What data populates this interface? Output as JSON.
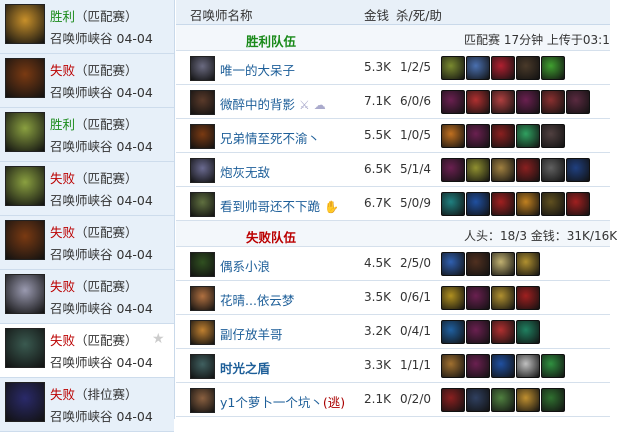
{
  "sidebar": {
    "matches": [
      {
        "result": "胜利",
        "result_type": "win",
        "mode": "（匹配赛）",
        "map": "召唤师峡谷",
        "date": "04-04",
        "avatar_color": "#c8902a"
      },
      {
        "result": "失败",
        "result_type": "lose",
        "mode": "（匹配赛）",
        "map": "召唤师峡谷",
        "date": "04-04",
        "avatar_color": "#7a3a12"
      },
      {
        "result": "胜利",
        "result_type": "win",
        "mode": "（匹配赛）",
        "map": "召唤师峡谷",
        "date": "04-04",
        "avatar_color": "#8aa040"
      },
      {
        "result": "失败",
        "result_type": "lose",
        "mode": "（匹配赛）",
        "map": "召唤师峡谷",
        "date": "04-04",
        "avatar_color": "#8aa040"
      },
      {
        "result": "失败",
        "result_type": "lose",
        "mode": "（匹配赛）",
        "map": "召唤师峡谷",
        "date": "04-04",
        "avatar_color": "#7a3a12"
      },
      {
        "result": "失败",
        "result_type": "lose",
        "mode": "（匹配赛）",
        "map": "召唤师峡谷",
        "date": "04-04",
        "avatar_color": "#9a9ab0"
      },
      {
        "result": "失败",
        "result_type": "lose",
        "mode": "（匹配赛）",
        "map": "召唤师峡谷",
        "date": "04-04",
        "avatar_color": "#3a5a50",
        "selected": true,
        "icon": "star-icon"
      },
      {
        "result": "失败",
        "result_type": "lose",
        "mode": "（排位赛）",
        "map": "召唤师峡谷",
        "date": "04-04",
        "avatar_color": "#2a2a6a"
      }
    ]
  },
  "header": {
    "name": "召唤师名称",
    "gold": "金钱",
    "kda": "杀/死/助"
  },
  "teams": [
    {
      "name": "胜利队伍",
      "color": "#1a8a1a",
      "info": "匹配赛 17分钟 上传于03:1",
      "players": [
        {
          "name": "唯一的大呆子",
          "gold": "5.3K",
          "kda": "1/2/5",
          "avatar_color": "#6a6a80",
          "items": [
            "#7a8a30",
            "#4a70b0",
            "#b02030",
            "#4a3a2a",
            "#40a030"
          ]
        },
        {
          "name": "微醉中的背影",
          "gold": "7.1K",
          "kda": "6/0/6",
          "avatar_color": "#5a3a2a",
          "icons": [
            "sword-icon",
            "cloud-icon"
          ],
          "items": [
            "#6a2050",
            "#b03030",
            "#b04040",
            "#6a2050",
            "#8a3030",
            "#5a2a40"
          ]
        },
        {
          "name": "兄弟情至死不渝丶",
          "gold": "5.5K",
          "kda": "1/0/5",
          "avatar_color": "#7a3a12",
          "items": [
            "#c07020",
            "#6a2050",
            "#8a2020",
            "#30a060",
            "#504040"
          ]
        },
        {
          "name": "炮灰无敌",
          "gold": "6.5K",
          "kda": "5/1/4",
          "avatar_color": "#6a6a90",
          "items": [
            "#6a2050",
            "#909030",
            "#a08040",
            "#8a2020",
            "#606060",
            "#204080"
          ]
        },
        {
          "name": "看到帅哥还不下跪",
          "gold": "6.7K",
          "kda": "5/0/9",
          "avatar_color": "#607040",
          "icons": [
            "hand-icon"
          ],
          "items": [
            "#208080",
            "#2050a0",
            "#a02020",
            "#c08020",
            "#605020",
            "#a02020"
          ]
        }
      ]
    },
    {
      "name": "失败队伍",
      "color": "#b00",
      "info": "人头：18/3 金钱：31K/16K",
      "players": [
        {
          "name": "偶系小浪",
          "gold": "4.5K",
          "kda": "2/5/0",
          "avatar_color": "#305020",
          "items": [
            "#3060b0",
            "#503020",
            "#c0b070",
            "#b09030"
          ]
        },
        {
          "name": "花晴...依云梦",
          "gold": "3.5K",
          "kda": "0/6/1",
          "avatar_color": "#b07040",
          "items": [
            "#b09020",
            "#6a2050",
            "#b09030",
            "#a02020"
          ]
        },
        {
          "name": "副仔放羊哥",
          "gold": "3.2K",
          "kda": "0/4/1",
          "avatar_color": "#c08030",
          "items": [
            "#2060a0",
            "#6a2050",
            "#b03030",
            "#208060"
          ]
        },
        {
          "name": "时光之盾",
          "gold": "3.3K",
          "kda": "1/1/1",
          "bold": true,
          "avatar_color": "#406060",
          "items": [
            "#a07030",
            "#6a2050",
            "#2050a0",
            "#c0c0c0",
            "#309040"
          ]
        },
        {
          "name": "y1个萝卜一个坑丶",
          "flag": "(逃)",
          "gold": "2.1K",
          "kda": "0/2/0",
          "avatar_color": "#8a6040",
          "items": [
            "#8a2020",
            "#304060",
            "#508040",
            "#c09030",
            "#307030"
          ]
        }
      ]
    }
  ]
}
